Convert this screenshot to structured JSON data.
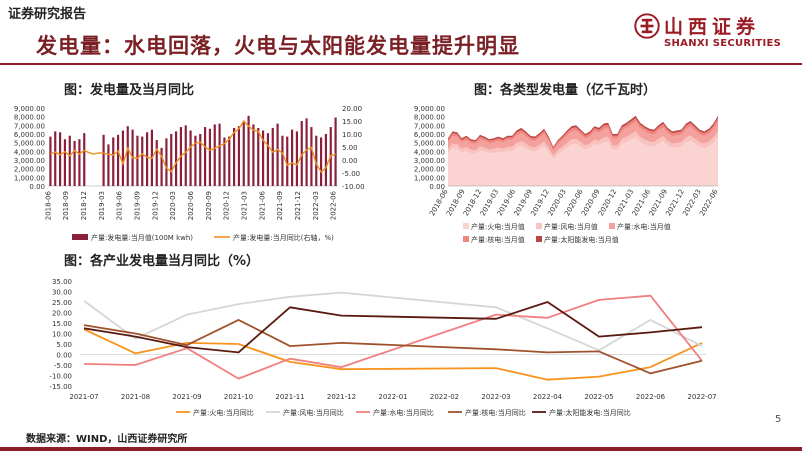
{
  "header": {
    "org": "证券研究报告",
    "title": "发电量：水电回落，火电与太阳能发电量提升明显",
    "logo_cn": "山西证券",
    "logo_en": "SHANXI SECURITIES"
  },
  "footer": {
    "source": "数据来源：WIND，山西证券研究所",
    "page": "5"
  },
  "colors": {
    "brand": "#8b1e25",
    "bar": "#8b1e3a",
    "line": "#f0901e",
    "area_fill": "#f7b0ad"
  },
  "chart_data": [
    {
      "type": "bar",
      "title": "图：发电量及当月同比",
      "x_ticks": [
        "2018-06",
        "2018-09",
        "2018-12",
        "2019-03",
        "2019-06",
        "2019-09",
        "2019-12",
        "2020-03",
        "2020-06",
        "2020-09",
        "2020-12",
        "2021-03",
        "2021-06",
        "2021-09",
        "2021-12",
        "2022-03",
        "2022-06"
      ],
      "y_left": {
        "ticks": [
          "0.00",
          "1,000.00",
          "2,000.00",
          "3,000.00",
          "4,000.00",
          "5,000.00",
          "6,000.00",
          "7,000.00",
          "8,000.00",
          "9,000.00"
        ],
        "ylim": [
          0,
          9000
        ]
      },
      "y_right": {
        "ticks": [
          "-10.00",
          "-5.00",
          "0.00",
          "5.00",
          "10.00",
          "15.00",
          "20.00"
        ],
        "ylim": [
          -10,
          20
        ]
      },
      "series": [
        {
          "name": "产量:发电量:当月值(100M kwh)",
          "kind": "bar",
          "axis": "left",
          "values": [
            5700,
            6300,
            6200,
            5400,
            5800,
            5200,
            5400,
            6100,
            null,
            null,
            null,
            5900,
            4800,
            5600,
            5900,
            6400,
            6900,
            6500,
            5800,
            5700,
            6200,
            6500,
            5300,
            4400,
            5500,
            6000,
            6300,
            6800,
            7000,
            6400,
            5800,
            6000,
            6800,
            6600,
            7100,
            7200,
            5600,
            5700,
            6700,
            6900,
            7500,
            8100,
            7100,
            6700,
            6400,
            6100,
            6700,
            7200,
            5800,
            5700,
            6500,
            6300,
            7500,
            7800,
            6800,
            5800,
            5600,
            6000,
            6800,
            7900
          ]
        },
        {
          "name": "产量:发电量:当月同比(右轴，%)",
          "kind": "line",
          "axis": "right",
          "values": [
            2.3,
            3.0,
            2.0,
            3.2,
            1.6,
            3.6,
            2.3,
            3.7,
            2.8,
            2.3,
            2.7,
            2.6,
            2.2,
            1.9,
            3.5,
            -1.5,
            4.5,
            0.8,
            0.7,
            2.4,
            1.0,
            0.6,
            4.2,
            1.4,
            -3.1,
            -4.5,
            -1.0,
            1.5,
            3.0,
            5.0,
            6.5,
            6.8,
            5.0,
            3.8,
            4.5,
            5.5,
            6.3,
            8.0,
            10.6,
            12.0,
            15.0,
            13.0,
            11.5,
            11.0,
            7.5,
            5.6,
            3.0,
            4.0,
            2.7,
            -2.0,
            -1.1,
            -1.9,
            2.0,
            3.9,
            4.8,
            -1.5,
            -4.6,
            -3.0,
            1.7,
            2.2
          ]
        }
      ]
    },
    {
      "type": "area",
      "title": "图：各类型发电量（亿千瓦时）",
      "x_ticks": [
        "2018-06",
        "2018-09",
        "2018-12",
        "2019-03",
        "2019-06",
        "2019-09",
        "2019-12",
        "2020-03",
        "2020-06",
        "2020-09",
        "2020-12",
        "2021-03",
        "2021-06",
        "2021-09",
        "2021-12",
        "2022-03",
        "2022-06"
      ],
      "y_ticks": [
        "0.00",
        "1,000.00",
        "2,000.00",
        "3,000.00",
        "4,000.00",
        "5,000.00",
        "6,000.00",
        "7,000.00",
        "8,000.00",
        "9,000.00"
      ],
      "ylim": [
        0,
        9000
      ],
      "totals": [
        5500,
        6300,
        6200,
        5500,
        5800,
        5400,
        5300,
        5900,
        5700,
        5400,
        5500,
        5700,
        5500,
        5800,
        5800,
        6400,
        6700,
        6300,
        5800,
        5700,
        6100,
        6600,
        5700,
        4500,
        5300,
        5800,
        6400,
        6900,
        7000,
        6500,
        6000,
        6300,
        6900,
        6700,
        7200,
        7300,
        6000,
        6000,
        7000,
        7300,
        7700,
        8100,
        7300,
        6900,
        6600,
        6500,
        7000,
        7400,
        6700,
        6300,
        6400,
        6500,
        7200,
        7500,
        7000,
        6500,
        6300,
        6600,
        7200,
        8100
      ],
      "series": [
        {
          "name": "产量:火电:当月值",
          "color": "#fbd3d1"
        },
        {
          "name": "产量:风电:当月值",
          "color": "#f8c2bf"
        },
        {
          "name": "产量:水电:当月值",
          "color": "#f4a19d"
        },
        {
          "name": "产量:核电:当月值",
          "color": "#ef857f"
        },
        {
          "name": "产量:太阳能发电:当月值",
          "color": "#b94545"
        }
      ]
    },
    {
      "type": "line",
      "title": "图：各产业发电量当月同比（%）",
      "categories": [
        "2021-07",
        "2021-08",
        "2021-09",
        "2021-10",
        "2021-11",
        "2021-12",
        "2022-01",
        "2022-02",
        "2022-03",
        "2022-04",
        "2022-05",
        "2022-06",
        "2022-07"
      ],
      "y_ticks": [
        "-15.00",
        "-10.00",
        "-5.00",
        "0.00",
        "5.00",
        "10.00",
        "15.00",
        "20.00",
        "25.00",
        "30.00",
        "35.00"
      ],
      "ylim": [
        -15,
        35
      ],
      "series": [
        {
          "name": "产量:火电:当月同比",
          "color": "#f7931e",
          "values": [
            12.0,
            0.5,
            5.5,
            5.0,
            -3.5,
            -7.0,
            null,
            null,
            -6.5,
            -12.0,
            -10.5,
            -6.0,
            5.5
          ]
        },
        {
          "name": "产量:风电:当月同比",
          "color": "#d6d6d6",
          "values": [
            25.5,
            7.5,
            19.0,
            24.0,
            27.5,
            29.5,
            null,
            null,
            22.5,
            12.5,
            2.0,
            16.5,
            4.0
          ]
        },
        {
          "name": "产量:水电:当月同比",
          "color": "#f08080",
          "values": [
            -4.5,
            -5.0,
            3.0,
            -11.5,
            -2.0,
            -6.0,
            null,
            null,
            19.0,
            17.5,
            26.0,
            28.0,
            -3.0
          ]
        },
        {
          "name": "产量:核电:当月同比",
          "color": "#a0522d",
          "values": [
            14.0,
            10.0,
            4.5,
            16.5,
            4.0,
            5.5,
            null,
            null,
            2.5,
            1.0,
            1.5,
            -9.0,
            -3.0
          ]
        },
        {
          "name": "产量:太阳能发电:当月同比",
          "color": "#5a1a12",
          "values": [
            12.5,
            8.5,
            3.5,
            1.0,
            22.5,
            18.5,
            null,
            null,
            17.0,
            25.0,
            8.5,
            10.5,
            13.0
          ]
        }
      ]
    }
  ]
}
